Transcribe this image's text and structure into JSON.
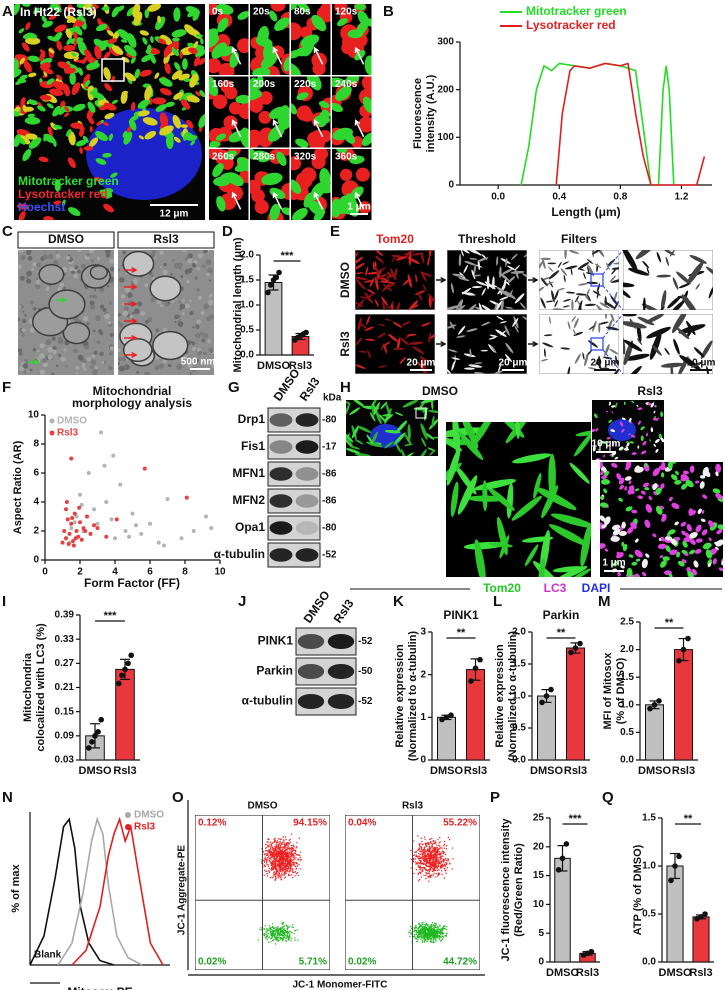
{
  "panels": {
    "labels": [
      "A",
      "B",
      "C",
      "D",
      "E",
      "F",
      "G",
      "H",
      "I",
      "J",
      "K",
      "L",
      "M",
      "N",
      "O",
      "P",
      "Q"
    ],
    "a": {
      "title": "In Ht22 (Rsl3)",
      "legend": [
        "Mitotracker green",
        "Lysotracker red",
        "Hoechst"
      ],
      "times": [
        "0s",
        "20s",
        "80s",
        "120s",
        "160s",
        "200s",
        "220s",
        "240s",
        "260s",
        "280s",
        "320s",
        "360s"
      ],
      "scale_bars": [
        "12 μm",
        "1 μm"
      ]
    },
    "c": {
      "headers": [
        "DMSO",
        "Rsl3"
      ],
      "scale_bar": "500 nm"
    },
    "e": {
      "columns": [
        "Tom20",
        "Threshold",
        "Filters"
      ],
      "rows": [
        "DMSO",
        "Rsl3"
      ],
      "scale_bars": [
        "20 μm",
        "20 μm",
        "20 μm",
        "10 μm"
      ]
    },
    "g": {
      "headers": [
        "DMSO",
        "Rsl3"
      ],
      "unit": "kDa",
      "bands": [
        {
          "label": "Drp1",
          "size": "-80"
        },
        {
          "label": "Fis1",
          "size": "-17"
        },
        {
          "label": "MFN1",
          "size": "-86"
        },
        {
          "label": "MFN2",
          "size": "-86"
        },
        {
          "label": "Opa1",
          "size": "-80"
        },
        {
          "label": "α-tubulin",
          "size": "-52"
        }
      ]
    },
    "h": {
      "headers": [
        "DMSO",
        "Rsl3"
      ],
      "scale_bars": [
        "10 μm",
        "1 μm"
      ],
      "stains": [
        "Tom20",
        "LC3",
        "DAPI"
      ]
    },
    "j": {
      "headers": [
        "DMSO",
        "Rsl3"
      ],
      "bands": [
        {
          "label": "PINK1",
          "size": "-52"
        },
        {
          "label": "Parkin",
          "size": "-50"
        },
        {
          "label": "α-tubulin",
          "size": "-52"
        }
      ]
    },
    "o": {
      "y_label": "JC-1 Aggregate-PE",
      "x_label": "JC-1 Monomer-FITC",
      "plots": [
        {
          "title": "DMSO",
          "quadrants": [
            "0.12%",
            "94.15%",
            "0.02%",
            "5.71%"
          ]
        },
        {
          "title": "Rsl3",
          "quadrants": [
            "0.04%",
            "55.22%",
            "0.02%",
            "44.72%"
          ]
        }
      ]
    }
  },
  "chart_data": [
    {
      "type": "line",
      "xlabel": "Length (μm)",
      "ylabel": [
        "Fluorescence",
        "intensity (A.U.)"
      ],
      "xlim": [
        -0.25,
        1.4
      ],
      "xticks": [
        {
          "value": 0,
          "label": "0.0"
        },
        0.4,
        0.8,
        1.2
      ],
      "ylim": [
        0,
        300
      ],
      "yticks": [
        0,
        100,
        200,
        300
      ],
      "legend": "upper right",
      "series": [
        {
          "name": "Mitotracker green",
          "color": "#22dd22",
          "x": [
            0.15,
            0.2,
            0.25,
            0.3,
            0.35,
            0.4,
            0.5,
            0.6,
            0.7,
            0.8,
            0.9,
            0.95,
            1.0,
            1.05,
            1.08,
            1.1,
            1.12,
            1.15
          ],
          "values": [
            0,
            80,
            200,
            250,
            240,
            255,
            250,
            245,
            255,
            250,
            240,
            120,
            0,
            0,
            200,
            250,
            200,
            0
          ]
        },
        {
          "name": "Lysotracker red",
          "color": "#e02020",
          "x": [
            0.38,
            0.42,
            0.47,
            0.5,
            0.6,
            0.7,
            0.8,
            0.85,
            0.9,
            0.95,
            1.0,
            1.3,
            1.35
          ],
          "values": [
            0,
            150,
            240,
            250,
            245,
            255,
            250,
            255,
            150,
            60,
            0,
            0,
            60
          ]
        }
      ]
    },
    {
      "type": "bar",
      "ylabel": [
        "Mitochondrial length (μm)"
      ],
      "categories": [
        "DMSO",
        "Rsl3"
      ],
      "values": [
        1.45,
        0.37
      ],
      "errors": [
        0.15,
        0.06
      ],
      "points": [
        [
          1.25,
          1.4,
          1.5,
          1.55,
          1.65
        ],
        [
          0.3,
          0.35,
          0.38,
          0.42,
          0.45
        ]
      ],
      "colors": [
        "#c0c0c0",
        "#e8383d"
      ],
      "ylim": [
        0,
        2
      ],
      "yticks": [
        {
          "value": 0,
          "label": "0.0"
        },
        0.5,
        {
          "value": 1,
          "label": "1.0"
        },
        1.5,
        {
          "value": 2,
          "label": "2.0"
        }
      ],
      "annotation": "***"
    },
    {
      "type": "scatter",
      "title": [
        "Mitochondrial",
        "morphology analysis"
      ],
      "xlabel": "Form Factor (FF)",
      "ylabel": [
        "Aspect Ratio (AR)"
      ],
      "xlim": [
        0,
        10
      ],
      "xticks": [
        0,
        2,
        4,
        6,
        8,
        10
      ],
      "ylim": [
        0,
        10
      ],
      "yticks": [
        0,
        2,
        4,
        6,
        8,
        10
      ],
      "legend": "upper left",
      "series": [
        {
          "name": "DMSO",
          "color": "#b4b4b4",
          "x": [
            1.2,
            1.5,
            1.8,
            2.0,
            2.2,
            2.5,
            2.8,
            3.0,
            3.2,
            3.5,
            3.8,
            4.0,
            4.3,
            4.6,
            5.0,
            5.5,
            6.0,
            6.5,
            7.0,
            7.8,
            8.5,
            9.2,
            9.5,
            1.4,
            2.6,
            3.4,
            4.8,
            2.1,
            1.7,
            3.9,
            5.2,
            6.8
          ],
          "values": [
            1.5,
            2.2,
            3.0,
            4.5,
            2.0,
            6.0,
            3.5,
            2.5,
            8.8,
            4.0,
            2.8,
            1.5,
            5.2,
            2.0,
            3.2,
            1.8,
            2.5,
            1.2,
            4.2,
            1.5,
            2.0,
            3.0,
            2.2,
            1.2,
            1.8,
            6.5,
            1.6,
            3.8,
            2.6,
            7.2,
            2.4,
            1.0
          ]
        },
        {
          "name": "Rsl3",
          "color": "#e84040",
          "x": [
            1.0,
            1.1,
            1.2,
            1.3,
            1.4,
            1.5,
            1.6,
            1.7,
            1.8,
            1.9,
            2.0,
            2.1,
            2.2,
            2.4,
            2.6,
            2.8,
            1.2,
            1.35,
            1.55,
            1.75,
            1.95,
            2.3,
            3.0,
            3.5,
            5.7,
            8.1,
            1.5,
            4.1,
            1.25,
            1.65
          ],
          "values": [
            1.2,
            2.0,
            1.5,
            2.8,
            1.8,
            2.5,
            1.3,
            3.2,
            2.0,
            1.6,
            2.6,
            1.4,
            2.2,
            3.0,
            1.8,
            2.4,
            3.5,
            1.1,
            2.9,
            1.5,
            3.6,
            2.0,
            2.2,
            1.6,
            6.3,
            4.3,
            7.0,
            2.8,
            4.0,
            1.0
          ]
        }
      ]
    },
    {
      "type": "bar",
      "ylabel": [
        "Mitochondria",
        "colocalized with LC3 (%)"
      ],
      "categories": [
        "DMSO",
        "Rsl3"
      ],
      "values": [
        0.09,
        0.255
      ],
      "errors": [
        0.03,
        0.025
      ],
      "points": [
        [
          0.06,
          0.075,
          0.09,
          0.1,
          0.13
        ],
        [
          0.22,
          0.24,
          0.255,
          0.27,
          0.29
        ]
      ],
      "colors": [
        "#c0c0c0",
        "#e8383d"
      ],
      "ylim": [
        0.03,
        0.39
      ],
      "yticks": [
        0.03,
        0.09,
        0.15,
        0.21,
        0.27,
        0.33,
        0.39
      ],
      "annotation": "***"
    },
    {
      "type": "bar",
      "title": "PINK1",
      "ylabel": [
        "Relative expression",
        "(Normalized to α-tubulin)"
      ],
      "categories": [
        "DMSO",
        "Rsl3"
      ],
      "values": [
        1,
        2.12
      ],
      "errors": [
        0.05,
        0.25
      ],
      "points": [
        [
          0.95,
          1.0,
          1.05
        ],
        [
          1.85,
          2.15,
          2.35
        ]
      ],
      "colors": [
        "#c0c0c0",
        "#e8383d"
      ],
      "ylim": [
        0,
        3
      ],
      "yticks": [
        0,
        1,
        2,
        3
      ],
      "annotation": "**"
    },
    {
      "type": "bar",
      "title": "Parkin",
      "ylabel": [
        "Relative expression",
        "(Normalized to α-tubulin)"
      ],
      "categories": [
        "DMSO",
        "Rsl3"
      ],
      "values": [
        1,
        1.75
      ],
      "errors": [
        0.1,
        0.08
      ],
      "points": [
        [
          0.9,
          1.0,
          1.1
        ],
        [
          1.68,
          1.75,
          1.82
        ]
      ],
      "colors": [
        "#c0c0c0",
        "#e8383d"
      ],
      "ylim": [
        0,
        2
      ],
      "yticks": [
        {
          "value": 0,
          "label": "0.0"
        },
        0.5,
        {
          "value": 1,
          "label": "1.0"
        },
        1.5,
        {
          "value": 2,
          "label": "2.0"
        }
      ],
      "annotation": "**"
    },
    {
      "type": "bar",
      "ylabel": [
        "MFI of Mitosox",
        "(% of DMSO)"
      ],
      "categories": [
        "DMSO",
        "Rsl3"
      ],
      "values": [
        1,
        2
      ],
      "errors": [
        0.07,
        0.2
      ],
      "points": [
        [
          0.93,
          1.0,
          1.07
        ],
        [
          1.8,
          2.0,
          2.2
        ]
      ],
      "colors": [
        "#c0c0c0",
        "#e8383d"
      ],
      "ylim": [
        0,
        2.5
      ],
      "yticks": [
        {
          "value": 0,
          "label": "0.0"
        },
        0.5,
        {
          "value": 1,
          "label": "1.0"
        },
        1.5,
        {
          "value": 2,
          "label": "2.0"
        },
        2.5
      ],
      "annotation": "**"
    },
    {
      "type": "line",
      "xlabel": "Mitosox-PE",
      "ylabel": [
        "% of max"
      ],
      "xlim": [
        0,
        100
      ],
      "ylim": [
        0,
        105
      ],
      "legend": "upper right",
      "series": [
        {
          "name": "Blank",
          "color": "#111111",
          "x": [
            0,
            10,
            18,
            24,
            28,
            32,
            36,
            42,
            50,
            60
          ],
          "values": [
            0,
            20,
            60,
            95,
            100,
            80,
            40,
            15,
            3,
            0
          ]
        },
        {
          "name": "DMSO",
          "color": "#a8a8a8",
          "x": [
            20,
            30,
            38,
            44,
            48,
            52,
            56,
            62,
            70,
            80
          ],
          "values": [
            0,
            15,
            50,
            85,
            100,
            90,
            55,
            20,
            5,
            0
          ]
        },
        {
          "name": "Rsl3",
          "color": "#e02020",
          "x": [
            30,
            40,
            50,
            56,
            60,
            64,
            68,
            72,
            78,
            86,
            95
          ],
          "values": [
            0,
            10,
            40,
            75,
            90,
            100,
            85,
            95,
            60,
            15,
            0
          ]
        }
      ]
    },
    {
      "type": "bar",
      "ylabel": [
        "JC-1 fluorescence intensity",
        "(Red/Green Ratio)"
      ],
      "categories": [
        "DMSO",
        "Rsl3"
      ],
      "values": [
        18,
        1.5
      ],
      "errors": [
        2.2,
        0.3
      ],
      "points": [
        [
          16,
          18,
          20.5
        ],
        [
          1.2,
          1.5,
          1.8
        ]
      ],
      "colors": [
        "#c0c0c0",
        "#e8383d"
      ],
      "ylim": [
        0,
        25
      ],
      "yticks": [
        0,
        5,
        10,
        15,
        20,
        25
      ],
      "annotation": "***"
    },
    {
      "type": "bar",
      "ylabel": [
        "ATP (% of DMSO)"
      ],
      "categories": [
        "DMSO",
        "Rsl3"
      ],
      "values": [
        1,
        0.47
      ],
      "errors": [
        0.13,
        0.02
      ],
      "points": [
        [
          0.85,
          1.0,
          1.1
        ],
        [
          0.45,
          0.47,
          0.5
        ]
      ],
      "colors": [
        "#c0c0c0",
        "#e8383d"
      ],
      "ylim": [
        0,
        1.5
      ],
      "yticks": [
        {
          "value": 0,
          "label": "0.0"
        },
        0.5,
        {
          "value": 1,
          "label": "1.0"
        },
        1.5
      ],
      "annotation": "**"
    }
  ]
}
